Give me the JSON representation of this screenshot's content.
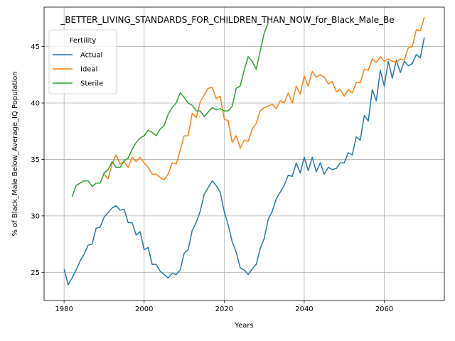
{
  "chart_data": {
    "type": "line",
    "title": "_BETTER_LIVING_STANDARDS_FOR_CHILDREN_THAN_NOW_for_Black_Male_Be",
    "xlabel": "Years",
    "ylabel": "% of Black_Male Below_Average_IQ Population",
    "xlim": [
      1975,
      2075
    ],
    "ylim": [
      22.5,
      48.5
    ],
    "xticks": [
      1980,
      2000,
      2020,
      2040,
      2060
    ],
    "yticks": [
      25,
      30,
      35,
      40,
      45
    ],
    "grid": true,
    "legend": {
      "title": "Fertility",
      "placement": "top-left"
    },
    "series": [
      {
        "name": "Actual",
        "color": "#1f77b4",
        "x": [
          1980,
          1981,
          1982,
          1983,
          1984,
          1985,
          1986,
          1987,
          1988,
          1989,
          1990,
          1991,
          1992,
          1993,
          1994,
          1995,
          1996,
          1997,
          1998,
          1999,
          2000,
          2001,
          2002,
          2003,
          2004,
          2005,
          2006,
          2007,
          2008,
          2009,
          2010,
          2011,
          2012,
          2013,
          2014,
          2015,
          2016,
          2017,
          2018,
          2019,
          2020,
          2021,
          2022,
          2023,
          2024,
          2025,
          2026,
          2027,
          2028,
          2029,
          2030,
          2031,
          2032,
          2033,
          2034,
          2035,
          2036,
          2037,
          2038,
          2039,
          2040,
          2041,
          2042,
          2043,
          2044,
          2045,
          2046,
          2047,
          2048,
          2049,
          2050,
          2051,
          2052,
          2053,
          2054,
          2055,
          2056,
          2057,
          2058,
          2059,
          2060,
          2061,
          2062,
          2063,
          2064,
          2065,
          2066,
          2067,
          2068,
          2069,
          2070
        ],
        "y": [
          25.3,
          23.9,
          24.5,
          25.2,
          26.0,
          26.6,
          27.4,
          27.5,
          28.9,
          29.0,
          29.9,
          30.3,
          30.7,
          30.9,
          30.5,
          30.6,
          29.4,
          29.4,
          28.3,
          28.6,
          27.0,
          27.2,
          25.7,
          25.7,
          25.1,
          24.8,
          24.5,
          24.9,
          24.8,
          25.2,
          26.7,
          27.0,
          28.7,
          29.4,
          30.4,
          31.9,
          32.5,
          33.1,
          32.7,
          32.1,
          30.4,
          29.2,
          27.7,
          26.8,
          25.4,
          25.2,
          24.8,
          25.3,
          25.7,
          27.1,
          28.0,
          29.7,
          30.4,
          31.5,
          32.1,
          32.7,
          33.6,
          33.5,
          34.7,
          33.8,
          35.2,
          34.0,
          35.2,
          33.9,
          34.7,
          33.7,
          34.3,
          34.1,
          34.2,
          34.7,
          34.7,
          35.6,
          35.4,
          37.0,
          36.7,
          38.9,
          38.4,
          41.2,
          40.2,
          42.9,
          41.5,
          43.7,
          42.2,
          43.8,
          42.7,
          43.7,
          43.3,
          43.5,
          44.3,
          44.0,
          45.8
        ]
      },
      {
        "name": "Ideal",
        "color": "#ff7f0e",
        "x": [
          1990,
          1991,
          1992,
          1993,
          1994,
          1995,
          1996,
          1997,
          1998,
          1999,
          2000,
          2001,
          2002,
          2003,
          2004,
          2005,
          2006,
          2007,
          2008,
          2009,
          2010,
          2011,
          2012,
          2013,
          2014,
          2015,
          2016,
          2017,
          2018,
          2019,
          2020,
          2021,
          2022,
          2023,
          2024,
          2025,
          2026,
          2027,
          2028,
          2029,
          2030,
          2031,
          2032,
          2033,
          2034,
          2035,
          2036,
          2037,
          2038,
          2039,
          2040,
          2041,
          2042,
          2043,
          2044,
          2045,
          2046,
          2047,
          2048,
          2049,
          2050,
          2051,
          2052,
          2053,
          2054,
          2055,
          2056,
          2057,
          2058,
          2059,
          2060,
          2061,
          2062,
          2063,
          2064,
          2065,
          2066,
          2067,
          2068,
          2069,
          2070
        ],
        "y": [
          33.7,
          33.3,
          34.6,
          35.4,
          34.6,
          34.8,
          34.3,
          35.2,
          34.8,
          35.2,
          34.7,
          34.3,
          33.7,
          33.7,
          33.4,
          33.2,
          33.7,
          34.7,
          34.6,
          35.8,
          37.1,
          37.1,
          39.1,
          38.7,
          40.1,
          40.7,
          41.3,
          41.4,
          40.4,
          40.6,
          38.6,
          38.4,
          36.5,
          37.1,
          36.0,
          36.7,
          36.6,
          37.7,
          38.2,
          39.3,
          39.6,
          39.7,
          39.9,
          39.5,
          40.2,
          40.0,
          40.9,
          40.0,
          41.5,
          40.8,
          42.4,
          41.5,
          42.8,
          42.3,
          42.5,
          42.3,
          41.7,
          41.9,
          41.0,
          41.2,
          40.6,
          41.2,
          40.9,
          41.8,
          41.8,
          43.0,
          42.9,
          43.9,
          43.6,
          44.1,
          43.7,
          43.9,
          43.7,
          43.6,
          43.9,
          43.8,
          44.9,
          45.0,
          46.5,
          46.4,
          47.6
        ]
      },
      {
        "name": "Sterile",
        "color": "#2ca02c",
        "x": [
          1982,
          1983,
          1984,
          1985,
          1986,
          1987,
          1988,
          1989,
          1990,
          1991,
          1992,
          1993,
          1994,
          1995,
          1996,
          1997,
          1998,
          1999,
          2000,
          2001,
          2002,
          2003,
          2004,
          2005,
          2006,
          2007,
          2008,
          2009,
          2010,
          2011,
          2012,
          2013,
          2014,
          2015,
          2016,
          2017,
          2018,
          2019,
          2020,
          2021,
          2022,
          2023,
          2024,
          2025,
          2026,
          2027,
          2028,
          2029,
          2030,
          2031
        ],
        "y": [
          31.7,
          32.7,
          32.9,
          33.1,
          33.1,
          32.6,
          32.9,
          32.9,
          33.8,
          34.1,
          34.8,
          34.3,
          34.3,
          34.9,
          35.1,
          35.9,
          36.5,
          36.9,
          37.1,
          37.6,
          37.4,
          37.1,
          37.7,
          38.0,
          39.0,
          39.6,
          40.0,
          40.9,
          40.5,
          40.0,
          39.8,
          39.3,
          39.3,
          38.8,
          39.2,
          39.6,
          39.4,
          39.5,
          39.3,
          39.3,
          39.7,
          41.3,
          41.5,
          42.9,
          44.1,
          43.7,
          43.0,
          44.6,
          46.2,
          47.1
        ]
      }
    ]
  }
}
